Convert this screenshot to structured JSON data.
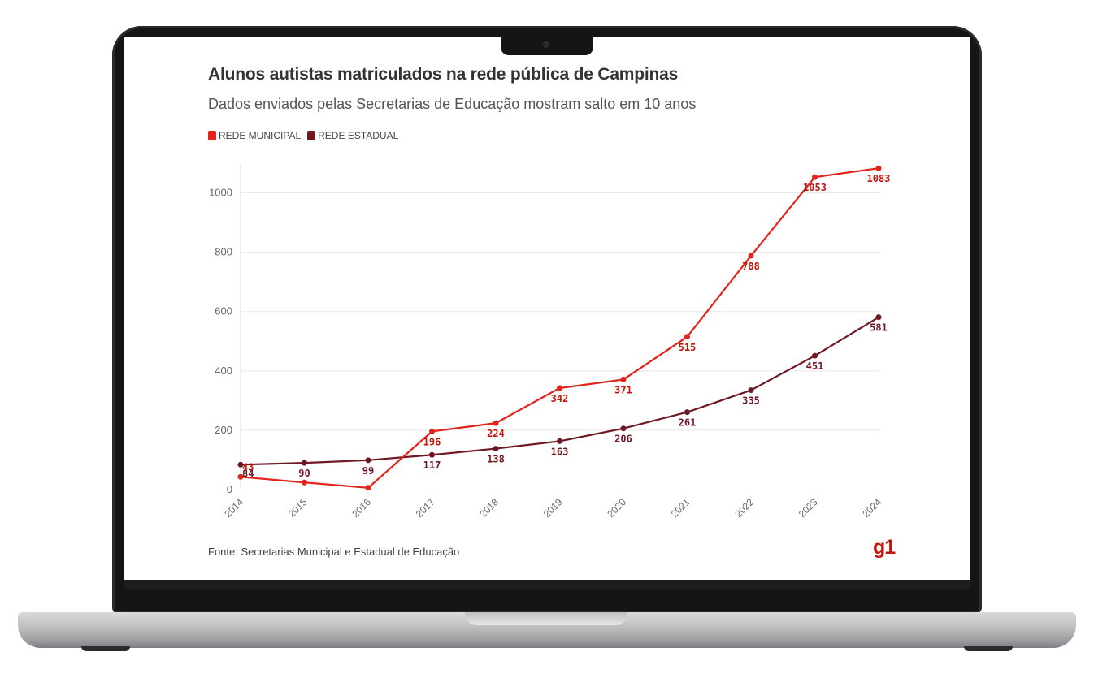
{
  "colors": {
    "municipal": "#e1251b",
    "estadual": "#6e1823",
    "municipal_label": "#c4170c",
    "estadual_label": "#6e1823",
    "grid": "#e8e8e8",
    "axis_text": "#666666"
  },
  "brand": {
    "logo_text": "g1"
  },
  "chart_data": {
    "type": "line",
    "title": "Alunos autistas matriculados na rede pública de Campinas",
    "subtitle": "Dados enviados pelas Secretarias de Educação mostram salto em 10 anos",
    "source": "Fonte: Secretarias Municipal e Estadual de Educação",
    "x": [
      "2014",
      "2015",
      "2016",
      "2017",
      "2018",
      "2019",
      "2020",
      "2021",
      "2022",
      "2023",
      "2024"
    ],
    "y_ticks": [
      "0",
      "200",
      "400",
      "600",
      "800",
      "1000"
    ],
    "ylim": [
      0,
      1100
    ],
    "grid": true,
    "legend_position": "top-left",
    "series": [
      {
        "name": "REDE MUNICIPAL",
        "color_key": "municipal",
        "values": [
          43,
          24,
          6,
          196,
          224,
          342,
          371,
          515,
          788,
          1053,
          1083
        ],
        "labels": [
          "43",
          "",
          "",
          "196",
          "224",
          "342",
          "371",
          "515",
          "788",
          "1053",
          "1083"
        ]
      },
      {
        "name": "REDE ESTADUAL",
        "color_key": "estadual",
        "values": [
          84,
          90,
          99,
          117,
          138,
          163,
          206,
          261,
          335,
          451,
          581
        ],
        "labels": [
          "84",
          "90",
          "99",
          "117",
          "138",
          "163",
          "206",
          "261",
          "335",
          "451",
          "581"
        ]
      }
    ]
  }
}
